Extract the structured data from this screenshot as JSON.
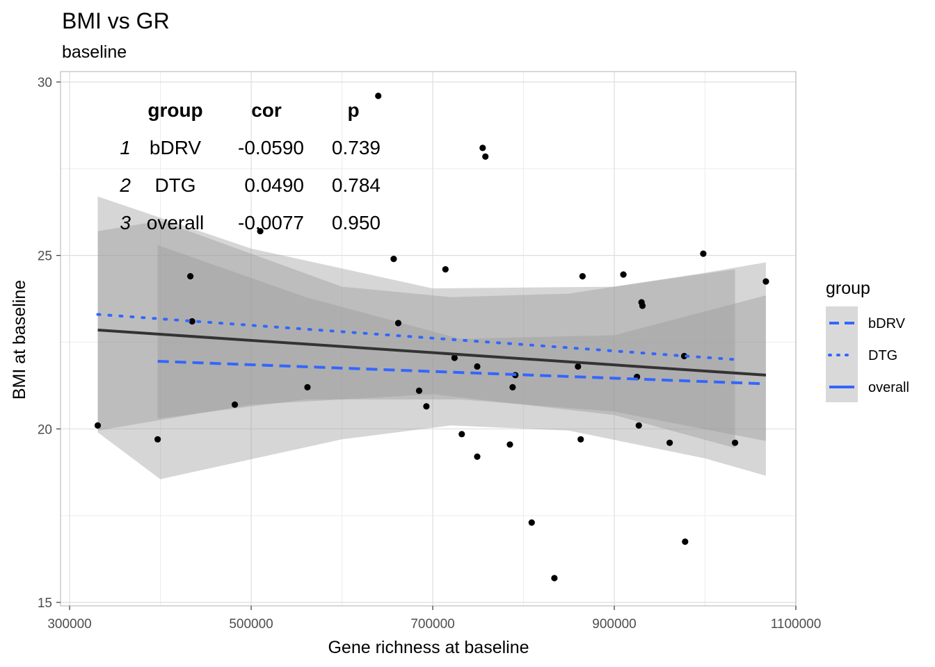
{
  "chart_data": {
    "type": "scatter",
    "title": "BMI vs GR",
    "subtitle": "baseline",
    "xlabel": "Gene richness at baseline",
    "ylabel": "BMI at baseline",
    "xlim": [
      290000,
      1100000
    ],
    "ylim": [
      14.9,
      30.3
    ],
    "x_ticks": [
      300000,
      500000,
      700000,
      900000,
      1100000
    ],
    "x_tick_labels": [
      "300000",
      "500000",
      "700000",
      "900000",
      "1100000"
    ],
    "y_ticks": [
      15,
      20,
      25,
      30
    ],
    "y_tick_labels": [
      "15",
      "20",
      "25",
      "30"
    ],
    "grid": true,
    "legend": {
      "title": "group",
      "position": "right",
      "entries": [
        {
          "label": "bDRV",
          "linetype": "dashed"
        },
        {
          "label": "DTG",
          "linetype": "dotted"
        },
        {
          "label": "overall",
          "linetype": "solid"
        }
      ]
    },
    "points": [
      {
        "x": 331000,
        "y": 20.1
      },
      {
        "x": 397000,
        "y": 19.7
      },
      {
        "x": 433000,
        "y": 24.4
      },
      {
        "x": 435000,
        "y": 23.1
      },
      {
        "x": 482000,
        "y": 20.7
      },
      {
        "x": 510000,
        "y": 25.7
      },
      {
        "x": 562000,
        "y": 21.2
      },
      {
        "x": 640000,
        "y": 29.6
      },
      {
        "x": 657000,
        "y": 24.9
      },
      {
        "x": 662000,
        "y": 23.05
      },
      {
        "x": 685000,
        "y": 21.1
      },
      {
        "x": 693000,
        "y": 20.65
      },
      {
        "x": 714000,
        "y": 24.6
      },
      {
        "x": 724000,
        "y": 22.05
      },
      {
        "x": 732000,
        "y": 19.85
      },
      {
        "x": 749000,
        "y": 21.8
      },
      {
        "x": 749000,
        "y": 19.2
      },
      {
        "x": 755000,
        "y": 28.1
      },
      {
        "x": 758000,
        "y": 27.85
      },
      {
        "x": 785000,
        "y": 19.55
      },
      {
        "x": 788000,
        "y": 21.2
      },
      {
        "x": 791000,
        "y": 21.55
      },
      {
        "x": 809000,
        "y": 17.3
      },
      {
        "x": 834000,
        "y": 15.7
      },
      {
        "x": 860000,
        "y": 21.8
      },
      {
        "x": 863000,
        "y": 19.7
      },
      {
        "x": 865000,
        "y": 24.4
      },
      {
        "x": 910000,
        "y": 24.45
      },
      {
        "x": 925000,
        "y": 21.5
      },
      {
        "x": 927000,
        "y": 20.1
      },
      {
        "x": 930000,
        "y": 23.65
      },
      {
        "x": 931000,
        "y": 23.55
      },
      {
        "x": 961000,
        "y": 19.6
      },
      {
        "x": 977000,
        "y": 22.1
      },
      {
        "x": 978000,
        "y": 16.75
      },
      {
        "x": 998000,
        "y": 25.05
      },
      {
        "x": 1033000,
        "y": 19.6
      },
      {
        "x": 1067000,
        "y": 24.25
      }
    ],
    "series": [
      {
        "name": "bDRV",
        "linetype": "dashed",
        "x": [
          397000,
          1067000
        ],
        "y": [
          21.95,
          21.3
        ],
        "band_lower": [
          [
            397000,
            20.3
          ],
          [
            560000,
            20.85
          ],
          [
            730000,
            20.85
          ],
          [
            900000,
            20.5
          ],
          [
            1067000,
            19.65
          ]
        ],
        "band_upper": [
          [
            397000,
            25.3
          ],
          [
            560000,
            23.8
          ],
          [
            730000,
            22.6
          ],
          [
            900000,
            22.7
          ],
          [
            1067000,
            23.85
          ]
        ]
      },
      {
        "name": "DTG",
        "linetype": "dotted",
        "x": [
          331000,
          1033000
        ],
        "y": [
          23.3,
          22.0
        ],
        "band_lower": [
          [
            331000,
            19.95
          ],
          [
            500000,
            20.7
          ],
          [
            700000,
            21.0
          ],
          [
            900000,
            20.4
          ],
          [
            1033000,
            19.45
          ]
        ],
        "band_upper": [
          [
            331000,
            26.7
          ],
          [
            500000,
            25.2
          ],
          [
            700000,
            24.05
          ],
          [
            900000,
            24.1
          ],
          [
            1033000,
            24.6
          ]
        ]
      },
      {
        "name": "overall",
        "linetype": "solid",
        "x": [
          331000,
          1067000
        ],
        "y": [
          22.85,
          21.55
        ],
        "band_lower": [
          [
            331000,
            19.9
          ],
          [
            400000,
            18.55
          ],
          [
            600000,
            19.7
          ],
          [
            720000,
            20.1
          ],
          [
            850000,
            19.95
          ],
          [
            1000000,
            19.15
          ],
          [
            1067000,
            18.65
          ]
        ],
        "band_upper": [
          [
            331000,
            25.7
          ],
          [
            400000,
            26.0
          ],
          [
            600000,
            24.1
          ],
          [
            720000,
            23.8
          ],
          [
            850000,
            23.9
          ],
          [
            1000000,
            24.5
          ],
          [
            1067000,
            24.8
          ]
        ]
      }
    ],
    "annotation_table": {
      "headers": [
        "group",
        "cor",
        "p"
      ],
      "rows": [
        {
          "idx": "1",
          "group": "bDRV",
          "cor": "-0.0590",
          "p": "0.739"
        },
        {
          "idx": "2",
          "group": "DTG",
          "cor": "0.0490",
          "p": "0.784"
        },
        {
          "idx": "3",
          "group": "overall",
          "cor": "-0.0077",
          "p": "0.950"
        }
      ]
    },
    "colors": {
      "line": "#3366FF",
      "overall_line": "#333333",
      "band": "#999999",
      "point": "#000000",
      "grid": "#dedede",
      "panel_border": "#bdbdbd",
      "legend_key_bg": "#d9d9d9"
    }
  }
}
